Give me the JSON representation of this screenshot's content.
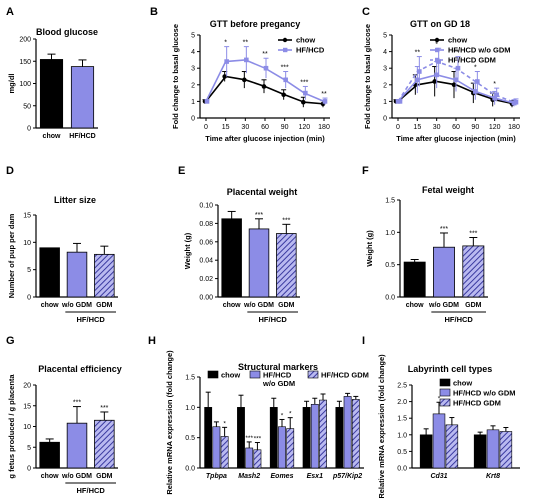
{
  "colors": {
    "black": "#000000",
    "purple": "#8c8ce6",
    "purple_dark": "#5a5acd"
  },
  "chart_data": [
    {
      "id": "A",
      "letter": "A",
      "type": "bar",
      "title": "Blood glucose",
      "ylabel": "mg/dl",
      "ylim": [
        0,
        200
      ],
      "yticks": [
        "0",
        "50",
        "100",
        "150",
        "200"
      ],
      "categories": [
        "chow",
        "HF/HCD"
      ],
      "values": [
        154,
        138
      ],
      "errors": [
        12,
        15
      ],
      "fills": [
        "solid",
        "light"
      ],
      "stars": [
        "",
        ""
      ]
    },
    {
      "id": "B",
      "letter": "B",
      "type": "line",
      "title": "GTT before pregancy",
      "ylabel": "Fold change to basal glucose",
      "xlabel": "Time after glucose injection (min)",
      "x": [
        0,
        15,
        30,
        60,
        90,
        120,
        180
      ],
      "xticks": [
        "0",
        "15",
        "30",
        "60",
        "90",
        "120",
        "180"
      ],
      "ylim": [
        0,
        5
      ],
      "yticks": [
        "0",
        "1",
        "2",
        "3",
        "4",
        "5"
      ],
      "series": [
        {
          "name": "chow",
          "values": [
            1.0,
            2.5,
            2.3,
            1.9,
            1.4,
            0.95,
            0.85
          ],
          "errors": [
            0.1,
            0.3,
            0.5,
            0.4,
            0.3,
            0.3,
            0.2
          ],
          "style": "black"
        },
        {
          "name": "HF/HCD",
          "values": [
            1.0,
            3.4,
            3.5,
            3.0,
            2.3,
            1.5,
            1.0
          ],
          "errors": [
            0.1,
            0.9,
            0.8,
            0.6,
            0.5,
            0.4,
            0.2
          ],
          "style": "purple"
        }
      ],
      "stars": [
        "",
        "*",
        "**",
        "**",
        "***",
        "***",
        "**"
      ]
    },
    {
      "id": "C",
      "letter": "C",
      "type": "line",
      "title": "GTT on GD 18",
      "ylabel": "Fold change to basal glucose",
      "xlabel": "Time after glucose injection (min)",
      "x": [
        0,
        15,
        30,
        60,
        90,
        120,
        180
      ],
      "xticks": [
        "0",
        "15",
        "30",
        "60",
        "90",
        "120",
        "180"
      ],
      "ylim": [
        0,
        5
      ],
      "yticks": [
        "0",
        "1",
        "2",
        "3",
        "4",
        "5"
      ],
      "series": [
        {
          "name": "chow",
          "values": [
            1.0,
            2.0,
            2.2,
            2.0,
            1.5,
            1.1,
            0.85
          ],
          "errors": [
            0.1,
            0.6,
            0.9,
            0.8,
            0.6,
            0.4,
            0.2
          ],
          "style": "black"
        },
        {
          "name": "HF/HCD w/o GDM",
          "values": [
            1.0,
            2.3,
            2.6,
            2.3,
            1.6,
            1.2,
            0.9
          ],
          "errors": [
            0.1,
            0.8,
            0.8,
            0.7,
            0.5,
            0.4,
            0.2
          ],
          "style": "purple"
        },
        {
          "name": "HF/HCD GDM",
          "values": [
            1.0,
            2.8,
            3.4,
            3.0,
            2.2,
            1.4,
            0.95
          ],
          "errors": [
            0.1,
            0.9,
            0.8,
            0.7,
            0.6,
            0.4,
            0.2
          ],
          "style": "purple-dash"
        }
      ],
      "stars": [
        "",
        "**",
        "*",
        "**",
        "*",
        "*",
        ""
      ]
    },
    {
      "id": "D",
      "letter": "D",
      "type": "bar",
      "title": "Litter size",
      "ylabel": "Number of pup per dam",
      "ylim": [
        0,
        15
      ],
      "yticks": [
        "0",
        "5",
        "10",
        "15"
      ],
      "categories": [
        "chow",
        "w/o GDM",
        "GDM"
      ],
      "group_label": "HF/HCD",
      "values": [
        9.0,
        8.2,
        7.8
      ],
      "errors": [
        0,
        1.6,
        1.5
      ],
      "fills": [
        "solid",
        "light",
        "hatch"
      ],
      "stars": [
        "",
        "",
        ""
      ]
    },
    {
      "id": "E",
      "letter": "E",
      "type": "bar",
      "title": "Placental weight",
      "ylabel": "Weight (g)",
      "ylim": [
        0,
        0.1
      ],
      "yticks": [
        "0.00",
        "0.02",
        "0.04",
        "0.06",
        "0.08",
        "0.10"
      ],
      "categories": [
        "chow",
        "w/o GDM",
        "GDM"
      ],
      "group_label": "HF/HCD",
      "values": [
        0.085,
        0.074,
        0.069
      ],
      "errors": [
        0.008,
        0.011,
        0.01
      ],
      "fills": [
        "solid",
        "light",
        "hatch"
      ],
      "stars": [
        "",
        "***",
        "***"
      ]
    },
    {
      "id": "F",
      "letter": "F",
      "type": "bar",
      "title": "Fetal weight",
      "ylabel": "Weight (g)",
      "ylim": [
        0,
        1.5
      ],
      "yticks": [
        "0.0",
        "0.5",
        "1.0",
        "1.5"
      ],
      "categories": [
        "chow",
        "w/o GDM",
        "GDM"
      ],
      "group_label": "HF/HCD",
      "values": [
        0.54,
        0.77,
        0.79
      ],
      "errors": [
        0.04,
        0.22,
        0.13
      ],
      "fills": [
        "solid",
        "light",
        "hatch"
      ],
      "stars": [
        "",
        "***",
        "***"
      ]
    },
    {
      "id": "G",
      "letter": "G",
      "type": "bar",
      "title": "Placental efficiency",
      "ylabel": "g fetus produced / g placenta",
      "ylim": [
        0,
        20
      ],
      "yticks": [
        "0",
        "5",
        "10",
        "15",
        "20"
      ],
      "categories": [
        "chow",
        "w/o GDM",
        "GDM"
      ],
      "group_label": "HF/HCD",
      "values": [
        6.2,
        10.8,
        11.5
      ],
      "errors": [
        0.8,
        4.0,
        2.0
      ],
      "fills": [
        "solid",
        "light",
        "hatch"
      ],
      "stars": [
        "",
        "***",
        "***"
      ]
    },
    {
      "id": "H",
      "letter": "H",
      "type": "bar",
      "title": "Structural markers",
      "ylabel": "Relative mRNA expression (fold change)",
      "ylim": [
        0,
        1.5
      ],
      "yticks": [
        "0.0",
        "0.5",
        "1.0",
        "1.5"
      ],
      "categories": [
        "Tpbpa",
        "Mash2",
        "Eomes",
        "Esx1",
        "p57/Kip2"
      ],
      "series": [
        {
          "name": "chow",
          "values": [
            1.0,
            1.0,
            1.0,
            1.0,
            1.0
          ],
          "errors": [
            0.25,
            0.2,
            0.15,
            0.1,
            0.1
          ],
          "fill": "solid"
        },
        {
          "name": "HF/HCD w/o GDM",
          "values": [
            0.68,
            0.33,
            0.68,
            1.05,
            1.18
          ],
          "errors": [
            0.08,
            0.1,
            0.12,
            0.1,
            0.05
          ],
          "fill": "light"
        },
        {
          "name": "HF/HCD GDM",
          "values": [
            0.52,
            0.3,
            0.65,
            1.12,
            1.13
          ],
          "errors": [
            0.15,
            0.12,
            0.18,
            0.1,
            0.05
          ],
          "fill": "hatch"
        }
      ],
      "stars": [
        [
          "",
          "",
          "*"
        ],
        [
          "",
          "***",
          "***"
        ],
        [
          "",
          "*",
          "*"
        ],
        [
          "",
          "",
          ""
        ],
        [
          "",
          "",
          ""
        ]
      ]
    },
    {
      "id": "I",
      "letter": "I",
      "type": "bar",
      "title": "Labyrinth cell types",
      "ylabel": "Relative mRNA expression (fold change)",
      "ylim": [
        0,
        2.5
      ],
      "yticks": [
        "0.0",
        "0.5",
        "1.0",
        "1.5",
        "2.0",
        "2.5"
      ],
      "categories": [
        "Cd31",
        "Krt8"
      ],
      "series": [
        {
          "name": "chow",
          "values": [
            1.0,
            1.0
          ],
          "errors": [
            0.18,
            0.08
          ],
          "fill": "solid"
        },
        {
          "name": "HF/HCD w/o GDM",
          "values": [
            1.63,
            1.15
          ],
          "errors": [
            0.35,
            0.12
          ],
          "fill": "light"
        },
        {
          "name": "HF/HCD GDM",
          "values": [
            1.3,
            1.1
          ],
          "errors": [
            0.22,
            0.12
          ],
          "fill": "hatch"
        }
      ],
      "stars": [
        [
          "",
          "*",
          ""
        ],
        [
          "",
          "",
          ""
        ]
      ]
    }
  ]
}
